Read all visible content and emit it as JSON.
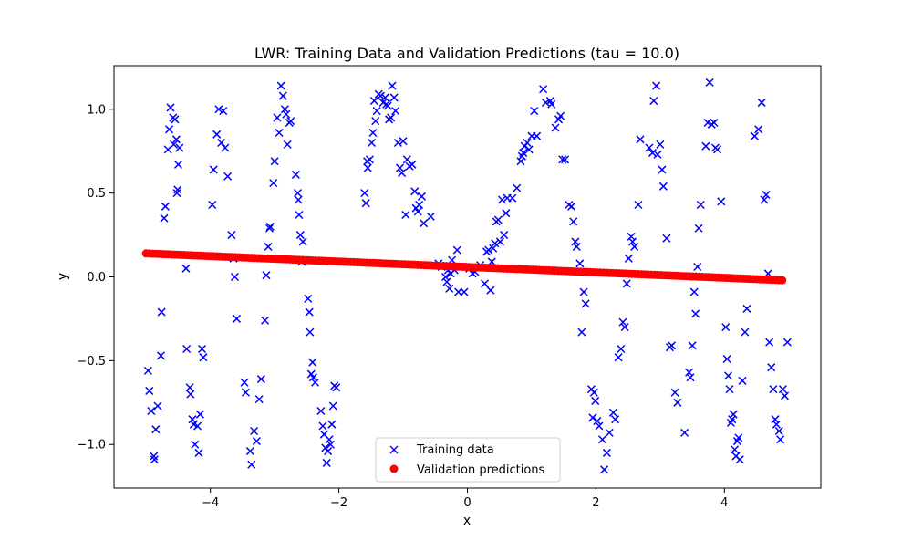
{
  "chart_data": {
    "type": "scatter",
    "title": "LWR: Training Data and Validation Predictions (tau = 10.0)",
    "xlabel": "x",
    "ylabel": "y",
    "xlim": [
      -5.5,
      5.5
    ],
    "ylim": [
      -1.26,
      1.26
    ],
    "xticks": [
      -4,
      -2,
      0,
      2,
      4
    ],
    "xtick_labels": [
      "−4",
      "−2",
      "0",
      "2",
      "4"
    ],
    "yticks": [
      -1.0,
      -0.5,
      0.0,
      0.5,
      1.0
    ],
    "ytick_labels": [
      "−1.0",
      "−0.5",
      "0.0",
      "0.5",
      "1.0"
    ],
    "grid": false,
    "legend_position": "lower center",
    "series": [
      {
        "name": "Training data",
        "marker": "x",
        "color": "#0000ff",
        "points": [
          [
            -4.97,
            -0.56
          ],
          [
            -4.95,
            -0.68
          ],
          [
            -4.92,
            -0.8
          ],
          [
            -4.88,
            -1.07
          ],
          [
            -4.87,
            -1.09
          ],
          [
            -4.85,
            -0.91
          ],
          [
            -4.82,
            -0.77
          ],
          [
            -4.77,
            -0.47
          ],
          [
            -4.76,
            -0.21
          ],
          [
            -4.72,
            0.35
          ],
          [
            -4.7,
            0.42
          ],
          [
            -4.66,
            0.76
          ],
          [
            -4.64,
            0.88
          ],
          [
            -4.62,
            1.01
          ],
          [
            -4.58,
            0.95
          ],
          [
            -4.57,
            0.79
          ],
          [
            -4.55,
            0.94
          ],
          [
            -4.53,
            0.82
          ],
          [
            -4.52,
            0.5
          ],
          [
            -4.51,
            0.52
          ],
          [
            -4.5,
            0.67
          ],
          [
            -4.48,
            0.77
          ],
          [
            -4.38,
            0.05
          ],
          [
            -4.37,
            -0.43
          ],
          [
            -4.32,
            -0.66
          ],
          [
            -4.31,
            -0.7
          ],
          [
            -4.28,
            -0.85
          ],
          [
            -4.26,
            -0.88
          ],
          [
            -4.24,
            -1.0
          ],
          [
            -4.2,
            -0.89
          ],
          [
            -4.18,
            -1.05
          ],
          [
            -4.16,
            -0.82
          ],
          [
            -4.13,
            -0.43
          ],
          [
            -4.11,
            -0.48
          ],
          [
            -3.97,
            0.43
          ],
          [
            -3.95,
            0.64
          ],
          [
            -3.9,
            0.85
          ],
          [
            -3.87,
            1.0
          ],
          [
            -3.83,
            0.8
          ],
          [
            -3.8,
            0.99
          ],
          [
            -3.77,
            0.77
          ],
          [
            -3.73,
            0.6
          ],
          [
            -3.67,
            0.25
          ],
          [
            -3.64,
            0.11
          ],
          [
            -3.62,
            0.0
          ],
          [
            -3.59,
            -0.25
          ],
          [
            -3.47,
            -0.63
          ],
          [
            -3.45,
            -0.69
          ],
          [
            -3.38,
            -1.04
          ],
          [
            -3.36,
            -1.12
          ],
          [
            -3.32,
            -0.92
          ],
          [
            -3.28,
            -0.98
          ],
          [
            -3.24,
            -0.73
          ],
          [
            -3.21,
            -0.61
          ],
          [
            -3.15,
            -0.26
          ],
          [
            -3.13,
            0.01
          ],
          [
            -3.1,
            0.18
          ],
          [
            -3.08,
            0.29
          ],
          [
            -3.07,
            0.3
          ],
          [
            -3.02,
            0.56
          ],
          [
            -3.0,
            0.69
          ],
          [
            -2.96,
            0.95
          ],
          [
            -2.93,
            0.86
          ],
          [
            -2.9,
            1.14
          ],
          [
            -2.87,
            1.08
          ],
          [
            -2.84,
            1.0
          ],
          [
            -2.82,
            0.97
          ],
          [
            -2.8,
            0.79
          ],
          [
            -2.77,
            0.92
          ],
          [
            -2.75,
            0.93
          ],
          [
            -2.67,
            0.61
          ],
          [
            -2.64,
            0.5
          ],
          [
            -2.63,
            0.46
          ],
          [
            -2.62,
            0.37
          ],
          [
            -2.6,
            0.25
          ],
          [
            -2.58,
            0.09
          ],
          [
            -2.56,
            0.21
          ],
          [
            -2.48,
            -0.13
          ],
          [
            -2.46,
            -0.21
          ],
          [
            -2.45,
            -0.33
          ],
          [
            -2.43,
            -0.58
          ],
          [
            -2.41,
            -0.51
          ],
          [
            -2.4,
            -0.6
          ],
          [
            -2.37,
            -0.63
          ],
          [
            -2.28,
            -0.8
          ],
          [
            -2.25,
            -0.89
          ],
          [
            -2.23,
            -0.94
          ],
          [
            -2.21,
            -1.02
          ],
          [
            -2.19,
            -1.11
          ],
          [
            -2.17,
            -1.04
          ],
          [
            -2.15,
            -0.97
          ],
          [
            -2.13,
            -1.0
          ],
          [
            -2.11,
            -0.88
          ],
          [
            -2.09,
            -0.77
          ],
          [
            -2.07,
            -0.65
          ],
          [
            -2.04,
            -0.66
          ],
          [
            -1.6,
            0.5
          ],
          [
            -1.58,
            0.44
          ],
          [
            -1.56,
            0.69
          ],
          [
            -1.55,
            0.65
          ],
          [
            -1.52,
            0.7
          ],
          [
            -1.49,
            0.8
          ],
          [
            -1.47,
            0.86
          ],
          [
            -1.45,
            1.05
          ],
          [
            -1.43,
            0.93
          ],
          [
            -1.41,
            0.99
          ],
          [
            -1.38,
            1.09
          ],
          [
            -1.35,
            1.08
          ],
          [
            -1.31,
            1.04
          ],
          [
            -1.28,
            1.07
          ],
          [
            -1.26,
            1.03
          ],
          [
            -1.24,
            1.02
          ],
          [
            -1.22,
            0.94
          ],
          [
            -1.19,
            0.95
          ],
          [
            -1.17,
            1.14
          ],
          [
            -1.14,
            1.07
          ],
          [
            -1.12,
            0.99
          ],
          [
            -1.08,
            0.8
          ],
          [
            -1.05,
            0.65
          ],
          [
            -1.02,
            0.62
          ],
          [
            -1.0,
            0.81
          ],
          [
            -0.96,
            0.37
          ],
          [
            -0.94,
            0.7
          ],
          [
            -0.9,
            0.66
          ],
          [
            -0.86,
            0.67
          ],
          [
            -0.82,
            0.51
          ],
          [
            -0.8,
            0.41
          ],
          [
            -0.77,
            0.39
          ],
          [
            -0.75,
            0.43
          ],
          [
            -0.71,
            0.48
          ],
          [
            -0.68,
            0.32
          ],
          [
            -0.57,
            0.36
          ],
          [
            -0.45,
            0.08
          ],
          [
            -0.4,
            0.06
          ],
          [
            -0.34,
            0.0
          ],
          [
            -0.32,
            -0.03
          ],
          [
            -0.3,
            0.04
          ],
          [
            -0.28,
            -0.07
          ],
          [
            -0.26,
            0.02
          ],
          [
            -0.24,
            0.1
          ],
          [
            -0.2,
            0.04
          ],
          [
            -0.16,
            0.16
          ],
          [
            -0.14,
            -0.09
          ],
          [
            -0.11,
            0.06
          ],
          [
            -0.05,
            -0.09
          ],
          [
            0.03,
            0.05
          ],
          [
            0.08,
            0.02
          ],
          [
            0.12,
            0.03
          ],
          [
            0.2,
            0.07
          ],
          [
            0.27,
            -0.04
          ],
          [
            0.3,
            0.15
          ],
          [
            0.33,
            0.16
          ],
          [
            0.36,
            -0.08
          ],
          [
            0.38,
            0.09
          ],
          [
            0.4,
            0.17
          ],
          [
            0.43,
            0.2
          ],
          [
            0.45,
            0.33
          ],
          [
            0.48,
            0.34
          ],
          [
            0.51,
            0.21
          ],
          [
            0.54,
            0.46
          ],
          [
            0.57,
            0.25
          ],
          [
            0.6,
            0.38
          ],
          [
            0.62,
            0.47
          ],
          [
            0.7,
            0.47
          ],
          [
            0.77,
            0.53
          ],
          [
            0.83,
            0.69
          ],
          [
            0.85,
            0.72
          ],
          [
            0.87,
            0.74
          ],
          [
            0.89,
            0.78
          ],
          [
            0.93,
            0.8
          ],
          [
            0.96,
            0.76
          ],
          [
            1.0,
            0.84
          ],
          [
            1.04,
            0.99
          ],
          [
            1.08,
            0.84
          ],
          [
            1.18,
            1.12
          ],
          [
            1.22,
            1.04
          ],
          [
            1.29,
            1.05
          ],
          [
            1.31,
            1.03
          ],
          [
            1.37,
            0.89
          ],
          [
            1.42,
            0.94
          ],
          [
            1.45,
            0.96
          ],
          [
            1.48,
            0.7
          ],
          [
            1.52,
            0.7
          ],
          [
            1.58,
            0.43
          ],
          [
            1.62,
            0.42
          ],
          [
            1.65,
            0.33
          ],
          [
            1.68,
            0.21
          ],
          [
            1.7,
            0.18
          ],
          [
            1.75,
            0.08
          ],
          [
            1.78,
            -0.33
          ],
          [
            1.81,
            -0.09
          ],
          [
            1.84,
            -0.16
          ],
          [
            1.93,
            -0.67
          ],
          [
            1.95,
            -0.84
          ],
          [
            1.97,
            -0.69
          ],
          [
            1.99,
            -0.74
          ],
          [
            2.02,
            -0.86
          ],
          [
            2.05,
            -0.89
          ],
          [
            2.1,
            -0.97
          ],
          [
            2.13,
            -1.15
          ],
          [
            2.17,
            -1.05
          ],
          [
            2.21,
            -0.93
          ],
          [
            2.27,
            -0.81
          ],
          [
            2.3,
            -0.85
          ],
          [
            2.35,
            -0.48
          ],
          [
            2.39,
            -0.43
          ],
          [
            2.42,
            -0.27
          ],
          [
            2.45,
            -0.3
          ],
          [
            2.48,
            -0.04
          ],
          [
            2.51,
            0.11
          ],
          [
            2.55,
            0.24
          ],
          [
            2.57,
            0.21
          ],
          [
            2.6,
            0.18
          ],
          [
            2.66,
            0.43
          ],
          [
            2.69,
            0.82
          ],
          [
            2.83,
            0.77
          ],
          [
            2.88,
            0.74
          ],
          [
            2.9,
            1.05
          ],
          [
            2.94,
            1.14
          ],
          [
            2.96,
            0.73
          ],
          [
            3.0,
            0.79
          ],
          [
            3.03,
            0.64
          ],
          [
            3.05,
            0.54
          ],
          [
            3.1,
            0.23
          ],
          [
            3.15,
            -0.42
          ],
          [
            3.18,
            -0.41
          ],
          [
            3.23,
            -0.69
          ],
          [
            3.27,
            -0.75
          ],
          [
            3.38,
            -0.93
          ],
          [
            3.45,
            -0.57
          ],
          [
            3.47,
            -0.6
          ],
          [
            3.5,
            -0.41
          ],
          [
            3.53,
            -0.09
          ],
          [
            3.55,
            -0.22
          ],
          [
            3.58,
            0.06
          ],
          [
            3.6,
            0.29
          ],
          [
            3.63,
            0.43
          ],
          [
            3.71,
            0.78
          ],
          [
            3.74,
            0.92
          ],
          [
            3.77,
            1.16
          ],
          [
            3.8,
            0.91
          ],
          [
            3.84,
            0.92
          ],
          [
            3.86,
            0.77
          ],
          [
            3.89,
            0.76
          ],
          [
            3.95,
            0.45
          ],
          [
            4.02,
            -0.3
          ],
          [
            4.04,
            -0.49
          ],
          [
            4.06,
            -0.59
          ],
          [
            4.08,
            -0.67
          ],
          [
            4.1,
            -0.87
          ],
          [
            4.12,
            -0.85
          ],
          [
            4.14,
            -0.82
          ],
          [
            4.16,
            -1.03
          ],
          [
            4.18,
            -1.07
          ],
          [
            4.2,
            -0.98
          ],
          [
            4.22,
            -0.96
          ],
          [
            4.24,
            -1.09
          ],
          [
            4.28,
            -0.62
          ],
          [
            4.32,
            -0.33
          ],
          [
            4.35,
            -0.19
          ],
          [
            4.47,
            0.84
          ],
          [
            4.53,
            0.88
          ],
          [
            4.58,
            1.04
          ],
          [
            4.62,
            0.46
          ],
          [
            4.65,
            0.49
          ],
          [
            4.68,
            0.02
          ],
          [
            4.7,
            -0.39
          ],
          [
            4.73,
            -0.54
          ],
          [
            4.76,
            -0.67
          ],
          [
            4.79,
            -0.85
          ],
          [
            4.81,
            -0.88
          ],
          [
            4.85,
            -0.92
          ],
          [
            4.87,
            -0.97
          ],
          [
            4.91,
            -0.67
          ],
          [
            4.94,
            -0.71
          ],
          [
            4.98,
            -0.39
          ]
        ]
      },
      {
        "name": "Validation predictions",
        "marker": "o",
        "color": "#ff0000",
        "x_start": -5.0,
        "x_end": 4.9,
        "count": 200,
        "y_start": 0.14,
        "y_end": -0.02
      }
    ]
  }
}
